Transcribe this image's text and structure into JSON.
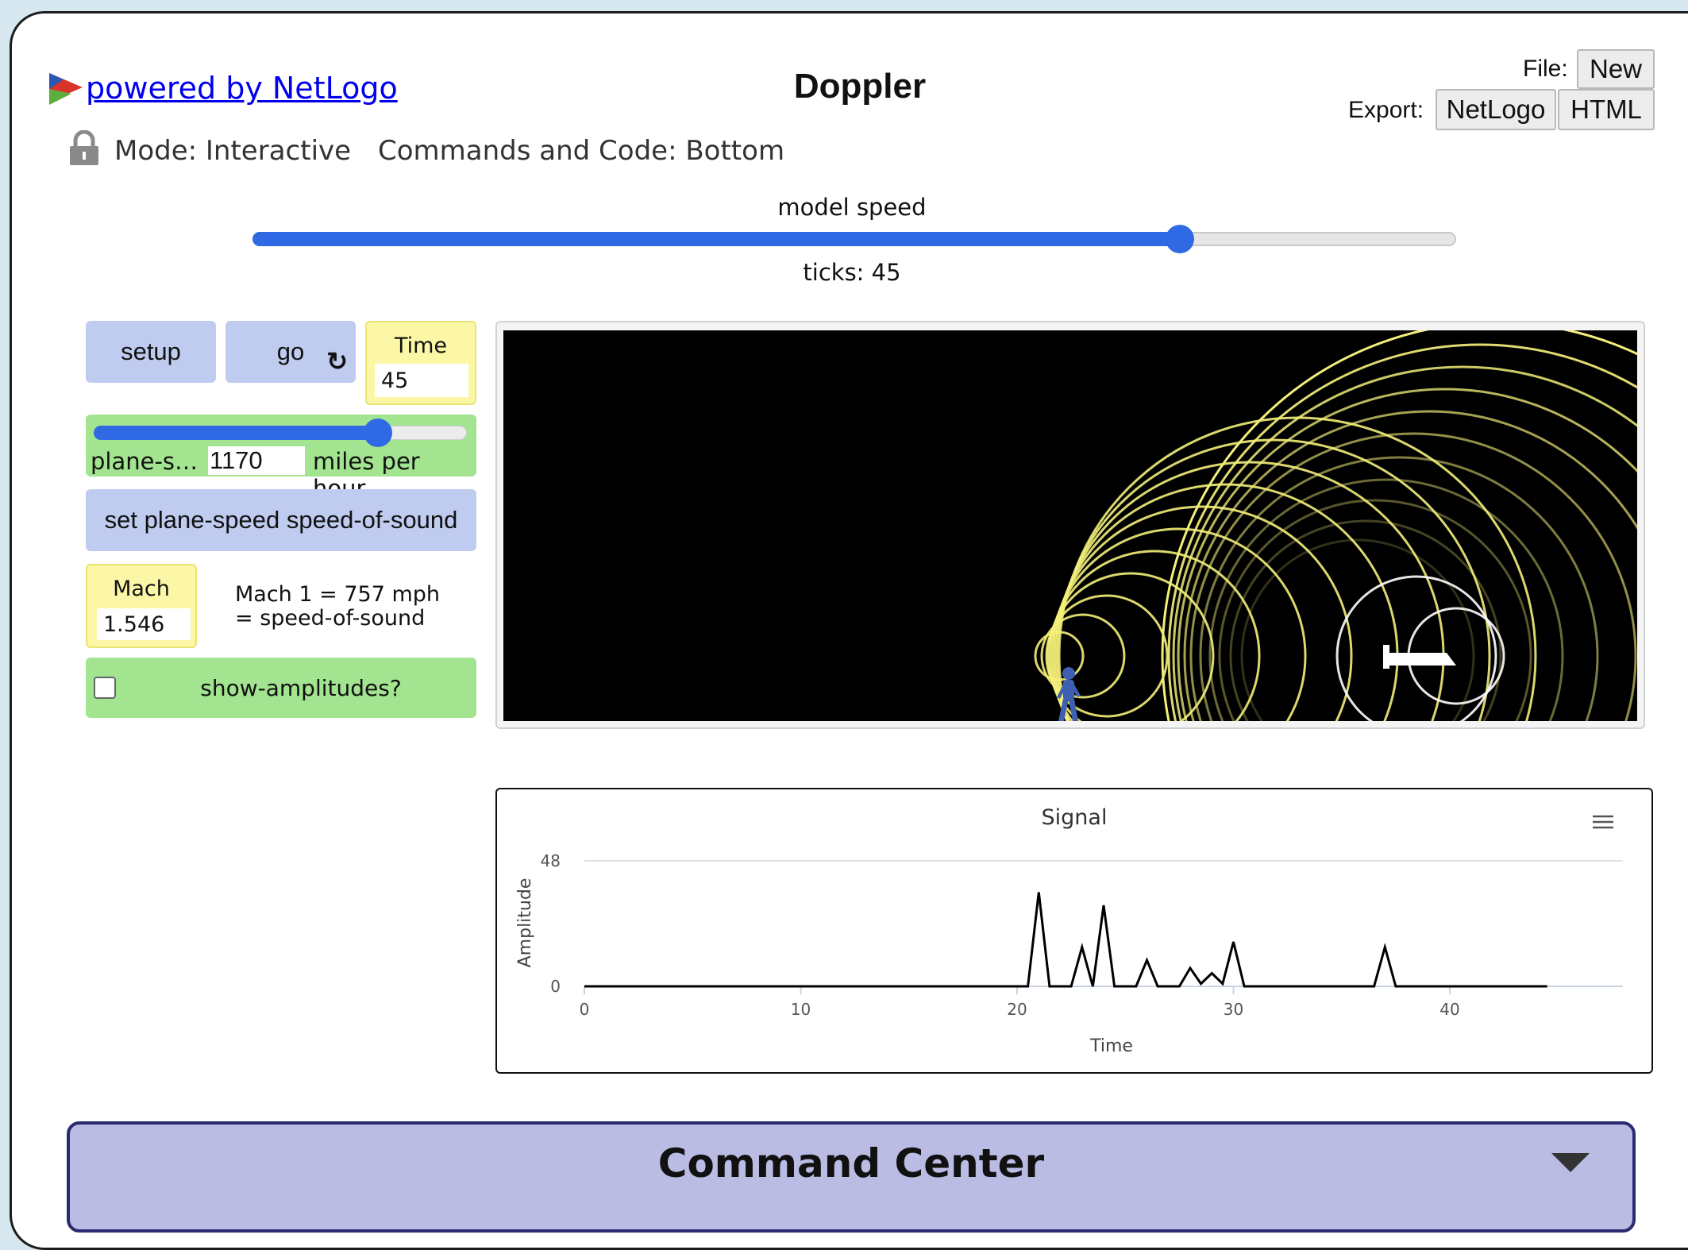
{
  "header": {
    "powered_by": "powered by NetLogo",
    "title": "Doppler",
    "file_label": "File:",
    "export_label": "Export:",
    "new_label": "New",
    "netlogo_label": "NetLogo",
    "html_label": "HTML",
    "mode": "Mode: Interactive",
    "commands_and_code": "Commands and Code: Bottom"
  },
  "speed": {
    "label": "model speed",
    "ticks": "ticks: 45",
    "value_fraction": 0.77
  },
  "widgets": {
    "setup_label": "setup",
    "go_label": "go",
    "forever_glyph": "↻",
    "time_label": "Time",
    "time_value": "45",
    "plane_speed_name": "plane-s…",
    "plane_speed_value": "1170",
    "plane_speed_units": "miles per hour",
    "plane_speed_fraction": 0.75,
    "set_speed_label": "set plane-speed speed-of-sound",
    "mach_label": "Mach",
    "mach_value": "1.546",
    "mach_note_line1": "Mach 1 = 757 mph",
    "mach_note_line2": "= speed-of-sound",
    "show_amplitudes_label": "show-amplitudes?",
    "show_amplitudes_checked": false
  },
  "colors": {
    "button": "#bfccef",
    "slider_switch": "#a2e48f",
    "monitor": "#fbf7a6",
    "accent": "#2f6ae4",
    "wave": "#f3ef7a",
    "person": "#3e5fb2",
    "command_center": "#babce3"
  },
  "chart_data": {
    "type": "line",
    "title": "Signal",
    "xlabel": "Time",
    "ylabel": "Amplitude",
    "xlim": [
      0,
      48
    ],
    "ylim": [
      0,
      48
    ],
    "xticks": [
      "0",
      "10",
      "20",
      "30",
      "40"
    ],
    "yticks": [
      "0",
      "48"
    ],
    "series": [
      {
        "x": [
          0,
          20.5,
          21,
          21.5,
          22.5,
          23,
          23.5,
          24,
          24.5,
          25.5,
          26,
          26.5,
          27.5,
          28,
          28.5,
          29,
          29.5,
          30,
          30.5,
          36.5,
          37,
          37.5,
          44.5
        ],
        "y": [
          0,
          0,
          36,
          0,
          0,
          15,
          0,
          31,
          0,
          0,
          10,
          0,
          0,
          7,
          1,
          5,
          1,
          17,
          0,
          0,
          15,
          0,
          0
        ]
      }
    ]
  },
  "command_center": {
    "title": "Command Center"
  }
}
